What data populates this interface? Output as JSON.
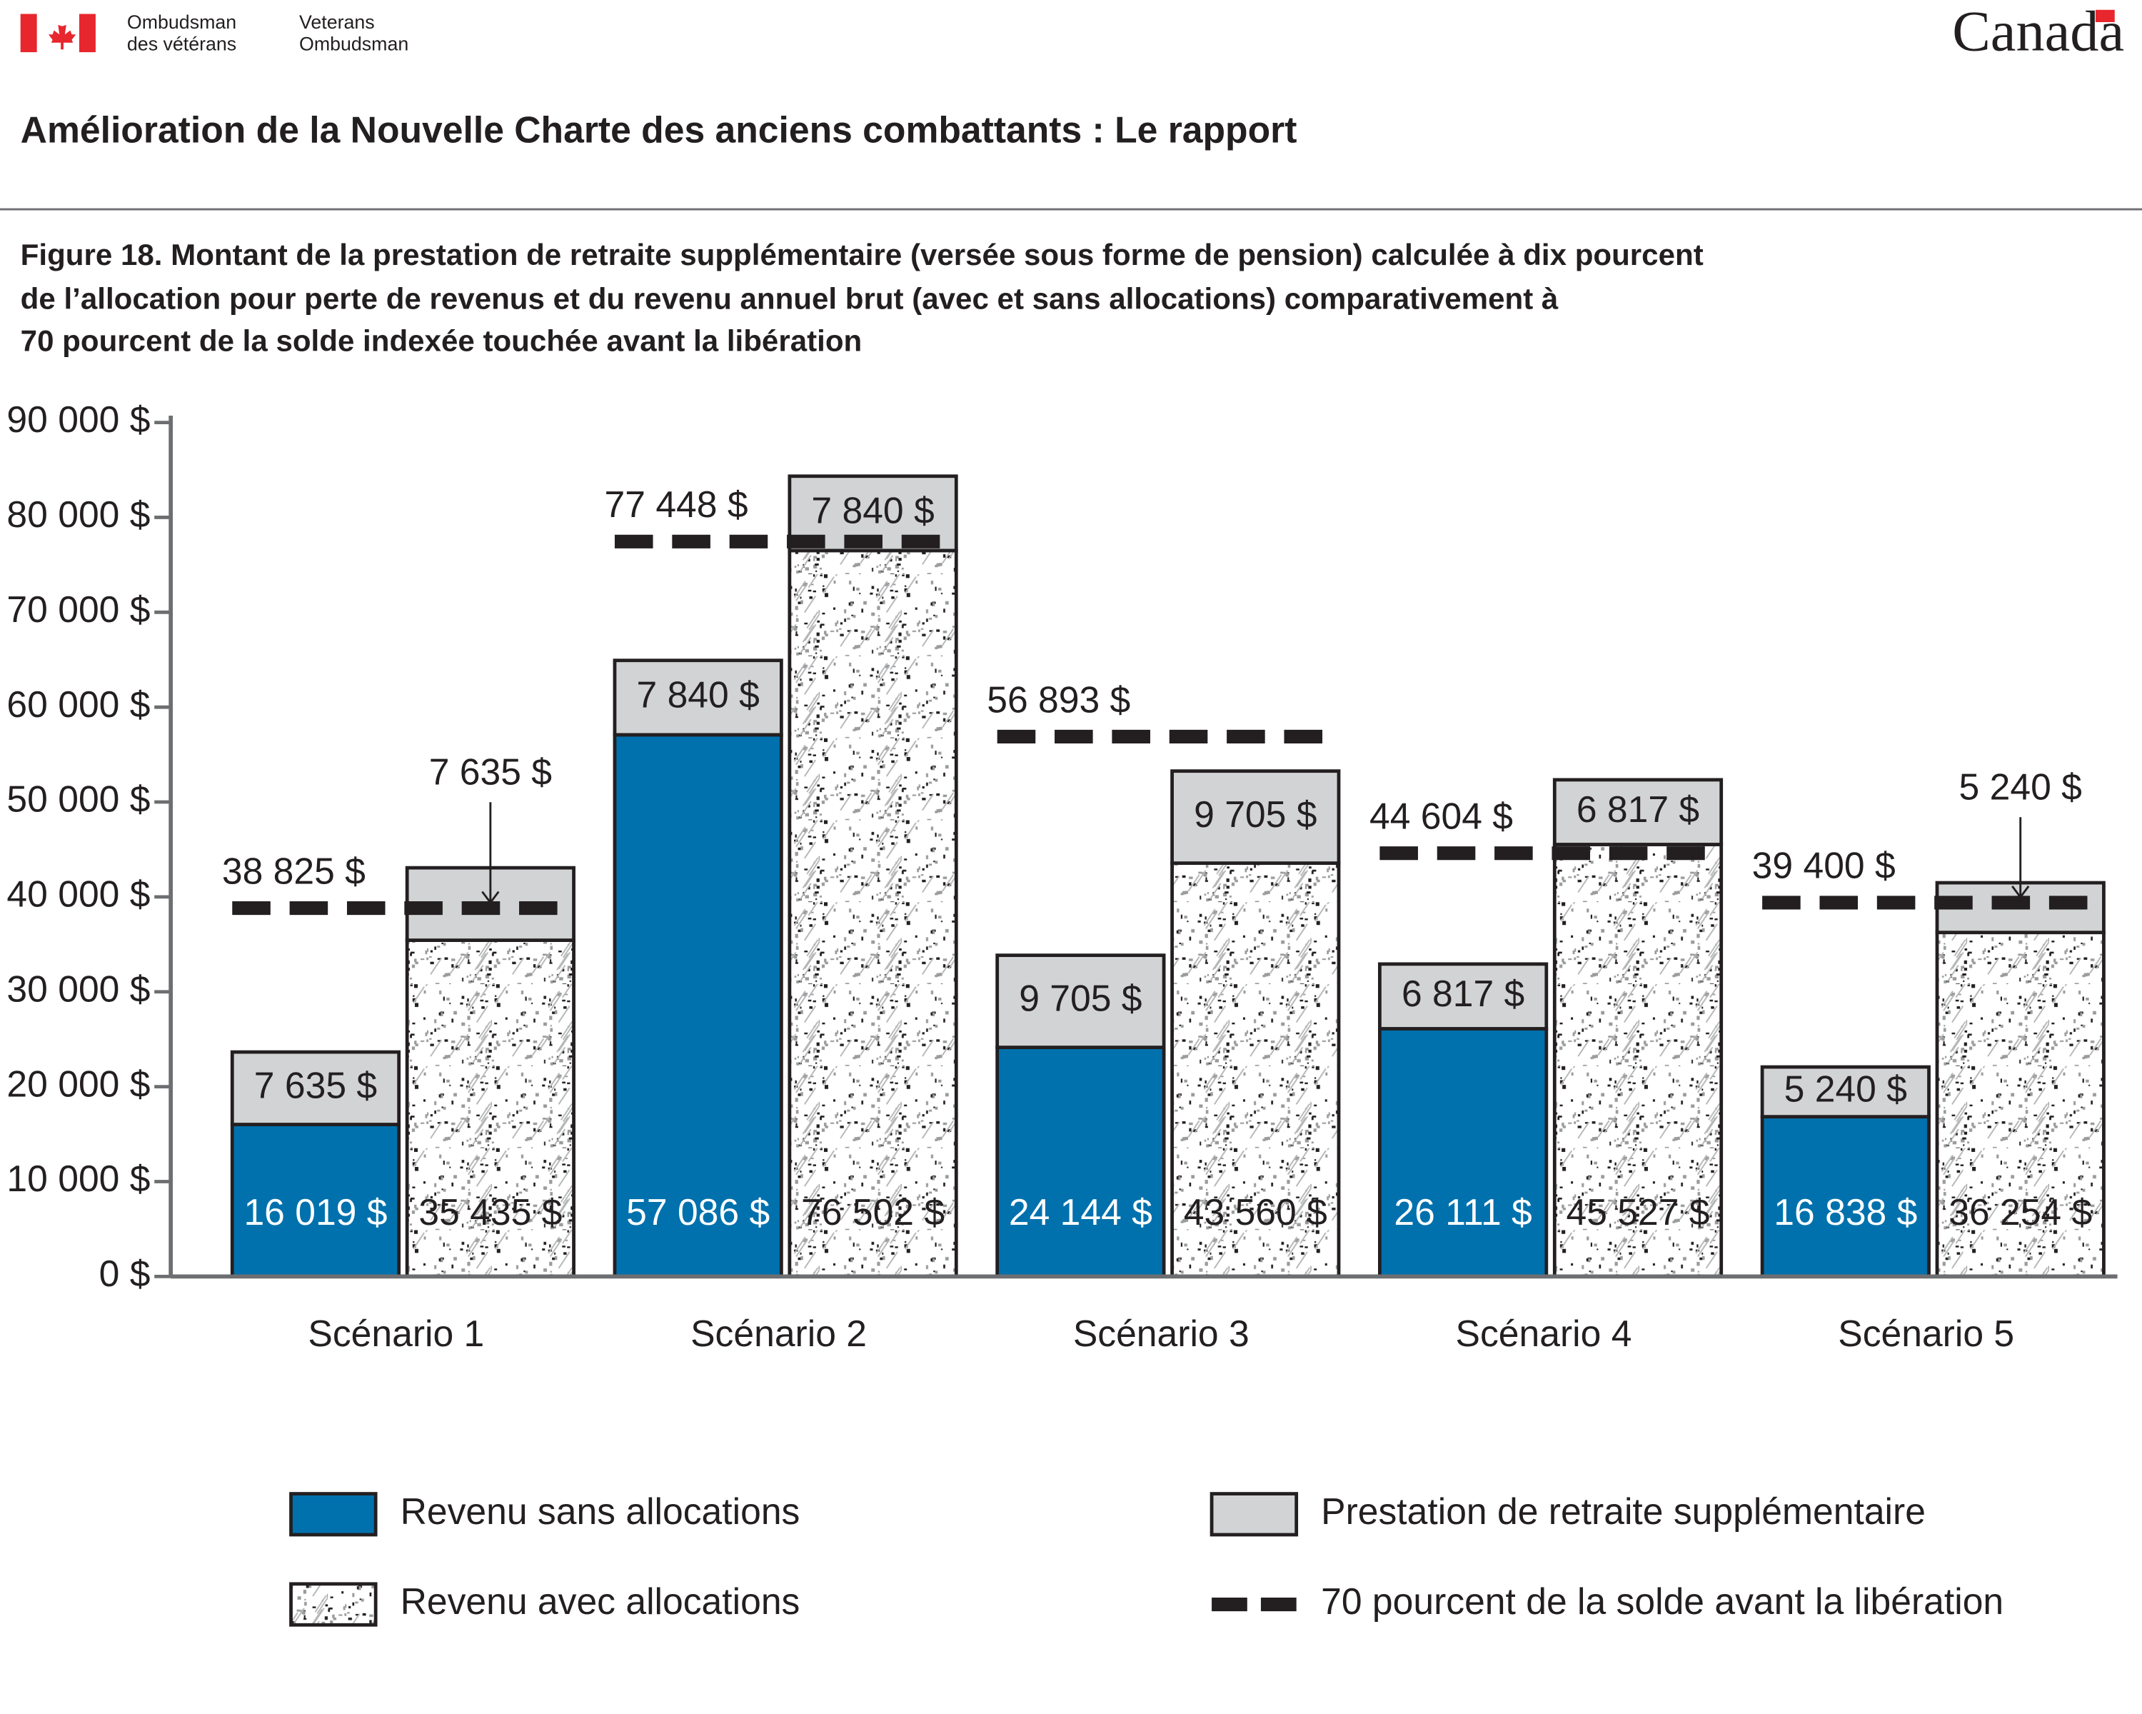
{
  "header": {
    "logo_fr": [
      "Ombudsman",
      "des vétérans"
    ],
    "logo_en": [
      "Veterans",
      "Ombudsman"
    ],
    "wordmark": "Canada",
    "title": "Amélioration de la Nouvelle Charte des anciens combattants : Le rapport"
  },
  "chart_data": {
    "type": "bar",
    "title": [
      "Figure 18. Montant de la prestation de retraite supplémentaire (versée sous forme de pension) calculée à dix pourcent",
      "de l’allocation pour perte de revenus et du revenu annuel brut (avec et sans allocations) comparativement à",
      "70 pourcent de la solde indexée touchée avant la libération"
    ],
    "categories": [
      "Scénario 1",
      "Scénario 2",
      "Scénario 3",
      "Scénario 4",
      "Scénario 5"
    ],
    "series": [
      {
        "name": "Revenu sans allocations",
        "color": "#0071ad",
        "values": [
          16019,
          57086,
          24144,
          26111,
          16838
        ],
        "value_labels": [
          "16 019 $",
          "57 086 $",
          "24 144 $",
          "26 111 $",
          "16 838 $"
        ]
      },
      {
        "name": "Revenu avec allocations",
        "color": "#ffffff",
        "pattern": "stipple",
        "values": [
          35435,
          76502,
          43560,
          45527,
          36254
        ],
        "value_labels": [
          "35 435 $",
          "76 502 $",
          "43 560 $",
          "45 527 $",
          "36 254 $"
        ]
      },
      {
        "name": "Prestation de retraite supplémentaire",
        "color": "#d1d3d4",
        "values": [
          7635,
          7840,
          9705,
          6817,
          5240
        ],
        "value_labels": [
          "7 635 $",
          "7 840 $",
          "9 705 $",
          "6 817 $",
          "5 240 $"
        ]
      },
      {
        "name": "70 pourcent de la solde avant la libération",
        "color": "#231f20",
        "type": "dashed-line",
        "values": [
          38825,
          77448,
          56893,
          44604,
          39400
        ],
        "value_labels": [
          "38 825 $",
          "77 448 $",
          "56 893 $",
          "44 604 $",
          "39 400 $"
        ]
      }
    ],
    "ylim": [
      0,
      90000
    ],
    "yticks": [
      {
        "value": 0,
        "label": "0 $"
      },
      {
        "value": 10000,
        "label": "10 000 $"
      },
      {
        "value": 20000,
        "label": "20 000 $"
      },
      {
        "value": 30000,
        "label": "30 000 $"
      },
      {
        "value": 40000,
        "label": "40 000 $"
      },
      {
        "value": 50000,
        "label": "50 000 $"
      },
      {
        "value": 60000,
        "label": "60 000 $"
      },
      {
        "value": 70000,
        "label": "70 000 $"
      },
      {
        "value": 80000,
        "label": "80 000 $"
      },
      {
        "value": 90000,
        "label": "90 000 $"
      }
    ],
    "legend": "bottom"
  }
}
